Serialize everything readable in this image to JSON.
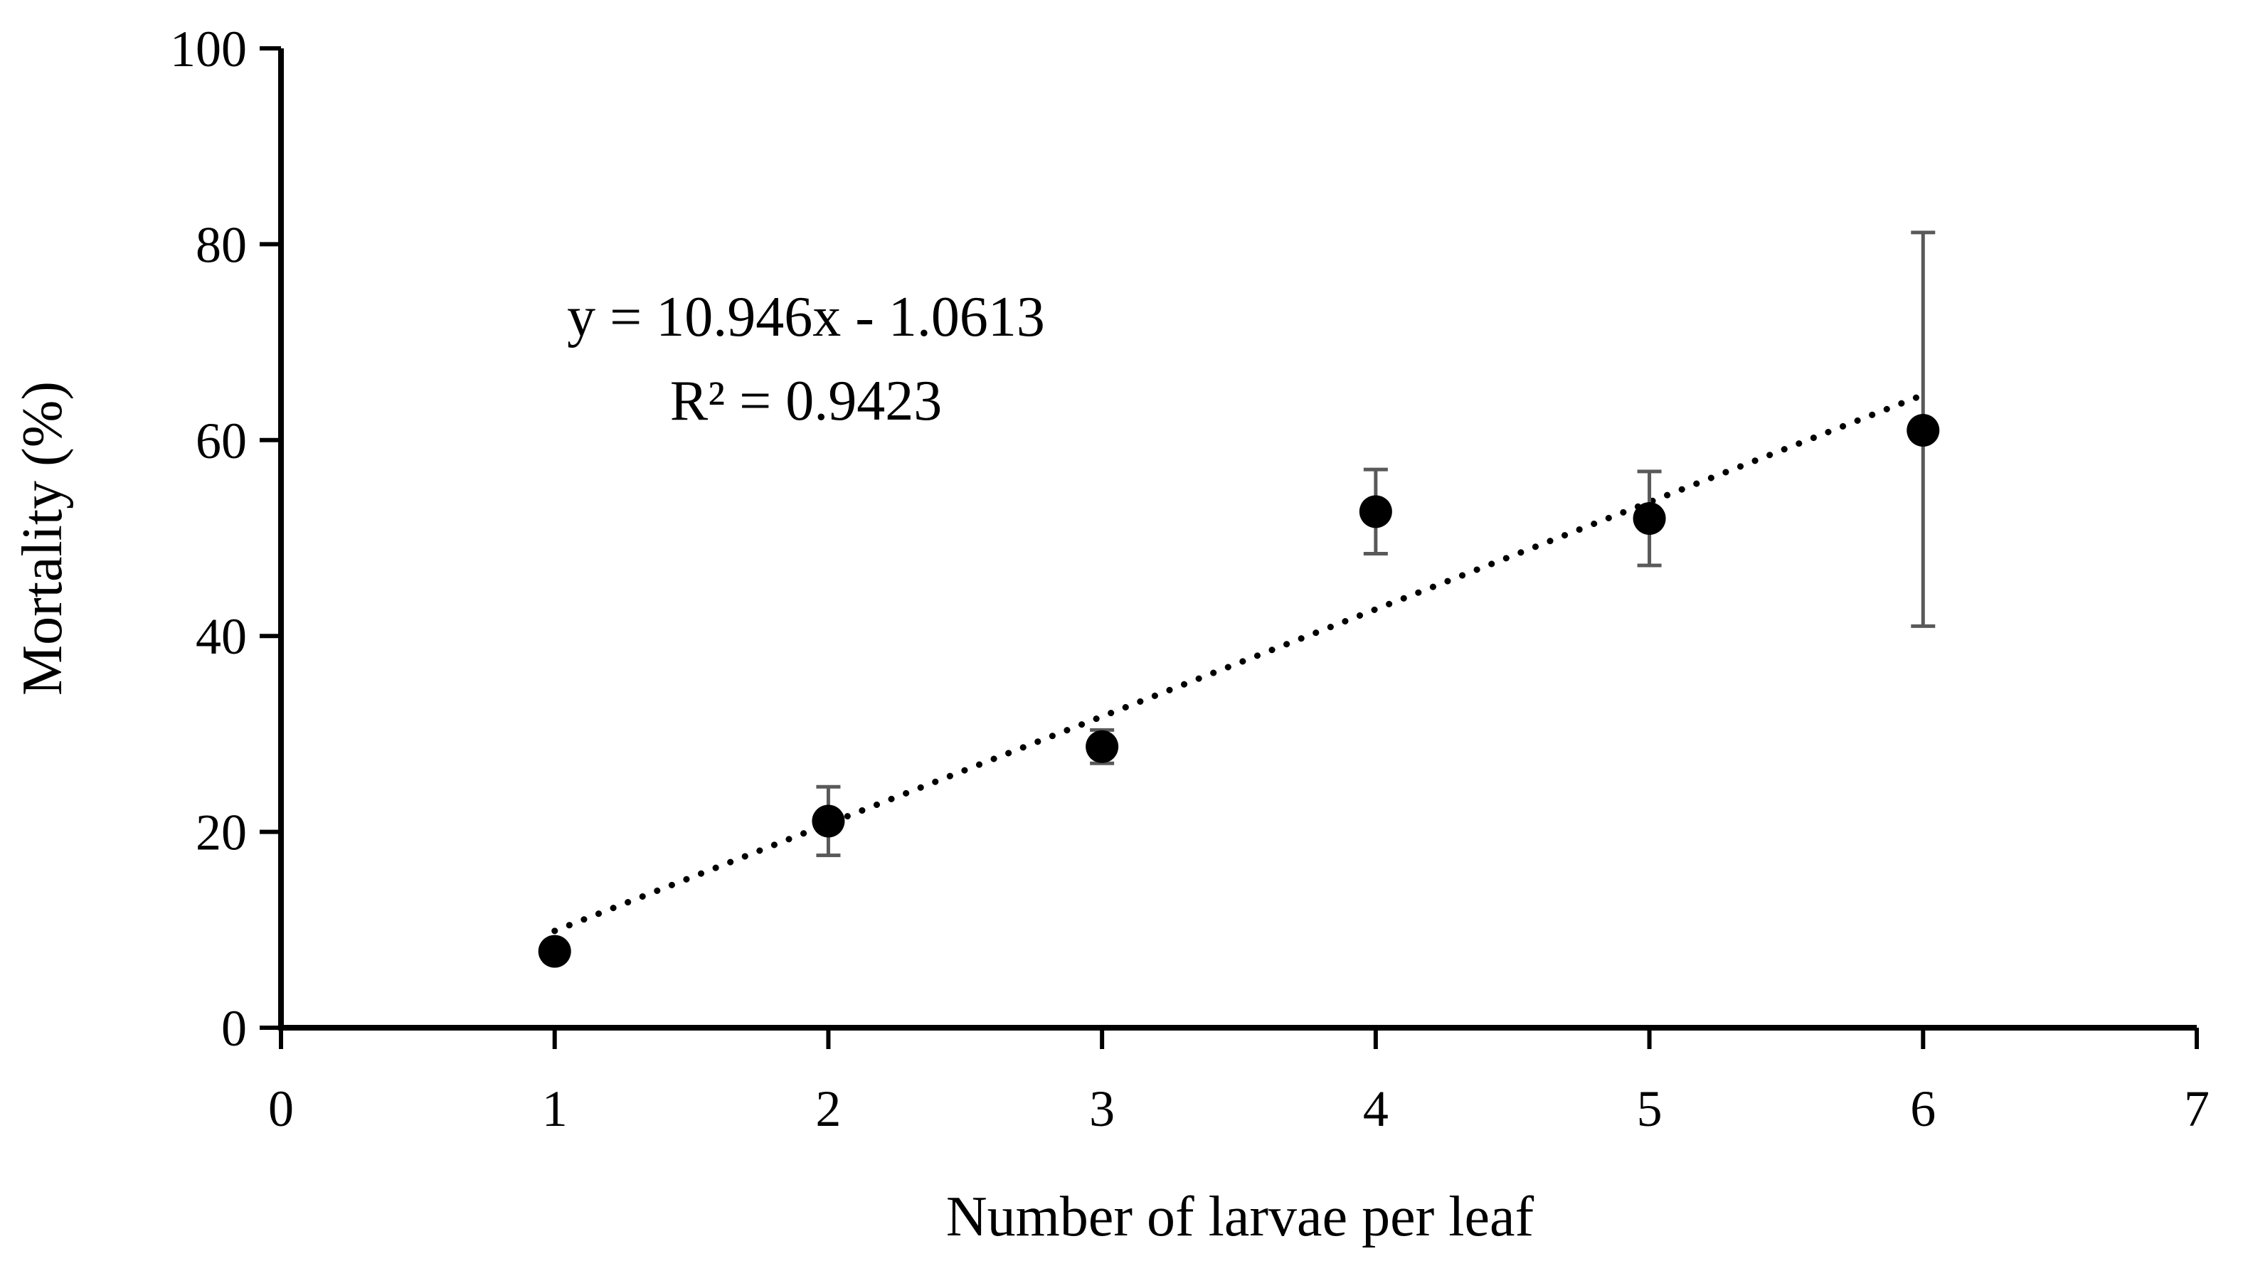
{
  "chart_data": {
    "type": "scatter",
    "xlabel": "Number of larvae per leaf",
    "ylabel": "Mortality (%)",
    "xlim": [
      0,
      7
    ],
    "ylim": [
      0,
      100
    ],
    "x_ticks": [
      "0",
      "1",
      "2",
      "3",
      "4",
      "5",
      "6",
      "7"
    ],
    "y_ticks": [
      "0",
      "20",
      "40",
      "60",
      "80",
      "100"
    ],
    "grid": false,
    "series": [
      {
        "points": [
          {
            "x": 1,
            "y": 7.8,
            "err_low": 7.8,
            "err_high": 7.8
          },
          {
            "x": 2,
            "y": 21.1,
            "err_low": 17.6,
            "err_high": 24.6
          },
          {
            "x": 3,
            "y": 28.7,
            "err_low": 27.0,
            "err_high": 30.4
          },
          {
            "x": 4,
            "y": 52.7,
            "err_low": 48.4,
            "err_high": 57.0
          },
          {
            "x": 5,
            "y": 52.0,
            "err_low": 47.2,
            "err_high": 56.8
          },
          {
            "x": 6,
            "y": 61.0,
            "err_low": 41.0,
            "err_high": 81.2
          }
        ],
        "marker_color": "#000000",
        "errorbar_color": "#595959"
      }
    ],
    "trendline": {
      "slope": 10.946,
      "intercept": -1.0613,
      "x_range": [
        1,
        6
      ],
      "style": "dotted",
      "equation": "y = 10.946x - 1.0613",
      "r_squared": "R² = 0.9423"
    }
  }
}
